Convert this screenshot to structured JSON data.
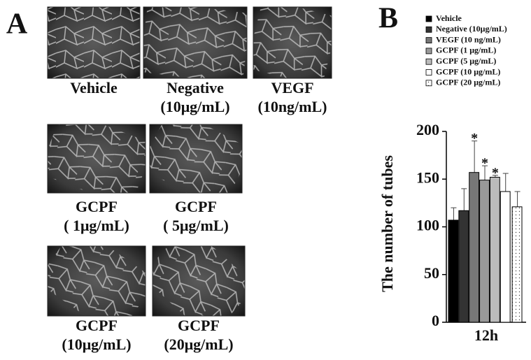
{
  "figure_a": {
    "label": "A",
    "images": [
      {
        "caption": [
          "Vehicle"
        ]
      },
      {
        "caption": [
          "Negative",
          "(10μg/mL)"
        ]
      },
      {
        "caption": [
          "VEGF",
          "(10ng/mL)"
        ]
      },
      {
        "caption": [
          "GCPF",
          "( 1μg/mL)"
        ]
      },
      {
        "caption": [
          "GCPF",
          "( 5μg/mL)"
        ]
      },
      {
        "caption": [
          "GCPF",
          "(10μg/mL)"
        ]
      },
      {
        "caption": [
          "GCPF",
          "(20μg/mL)"
        ]
      }
    ]
  },
  "chart_data": {
    "type": "bar",
    "label": "B",
    "ylabel": "The number of tubes",
    "categories": [
      "12h"
    ],
    "series": [
      {
        "name": "Vehicle",
        "color": "#000000",
        "values": [
          107
        ],
        "errors": [
          13
        ]
      },
      {
        "name": "Negative (10μg/mL)",
        "color": "#333333",
        "values": [
          117
        ],
        "errors": [
          23
        ]
      },
      {
        "name": "VEGF (10 ng/mL)",
        "color": "#777777",
        "values": [
          157
        ],
        "errors": [
          33
        ],
        "annotation": "*"
      },
      {
        "name": "GCPF (1 μg/mL)",
        "color": "#999999",
        "values": [
          149
        ],
        "errors": [
          15
        ],
        "annotation": "*"
      },
      {
        "name": "GCPF (5 μg/mL)",
        "color": "#bbbbbb",
        "values": [
          152
        ],
        "errors": [
          2
        ],
        "annotation": "*"
      },
      {
        "name": "GCPF (10 μg/mL)",
        "color": "#ffffff",
        "values": [
          137
        ],
        "errors": [
          19
        ]
      },
      {
        "name": "GCPF (20 μg/mL)",
        "color": "#ffffff",
        "pattern": "dots",
        "values": [
          121
        ],
        "errors": [
          16
        ]
      }
    ],
    "ylim": [
      0,
      200
    ],
    "yticks": [
      0,
      50,
      100,
      150,
      200
    ]
  }
}
